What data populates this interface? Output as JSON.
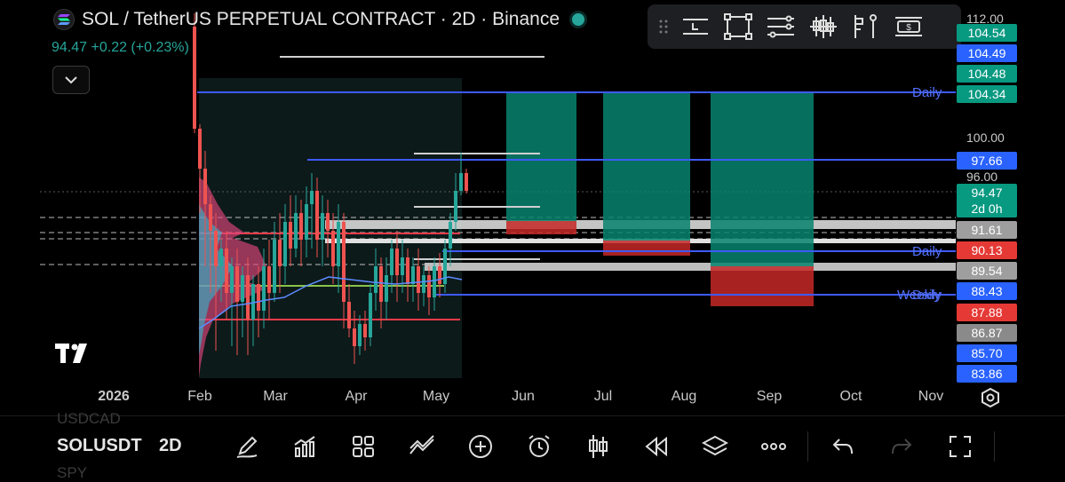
{
  "header": {
    "title": "SOL / TetherUS PERPETUAL CONTRACT · 2D · Binance",
    "last_price": "94.47",
    "change": "+0.22 (+0.23%)",
    "live_color": "#26a69a"
  },
  "price_scale": {
    "labels": [
      "112.00",
      "100.00",
      "96.00"
    ]
  },
  "price_tags": [
    {
      "value": "104.54",
      "color": "#089981"
    },
    {
      "value": "104.49",
      "color": "#2962ff"
    },
    {
      "value": "104.48",
      "color": "#089981"
    },
    {
      "value": "104.34",
      "color": "#089981"
    },
    {
      "value": "97.66",
      "color": "#2962ff"
    },
    {
      "value": "94.47",
      "color": "#089981"
    },
    {
      "value": "2d 0h",
      "color": "#089981"
    },
    {
      "value": "91.61",
      "color": "#9e9e9e"
    },
    {
      "value": "90.13",
      "color": "#e53935"
    },
    {
      "value": "89.54",
      "color": "#9e9e9e"
    },
    {
      "value": "88.43",
      "color": "#2962ff"
    },
    {
      "value": "87.88",
      "color": "#e53935"
    },
    {
      "value": "86.87",
      "color": "#8a8a8a"
    },
    {
      "value": "85.70",
      "color": "#2962ff"
    },
    {
      "value": "83.86",
      "color": "#2962ff"
    }
  ],
  "time_axis": [
    "2026",
    "Feb",
    "Mar",
    "Apr",
    "May",
    "Jun",
    "Jul",
    "Aug",
    "Sep",
    "Oct",
    "Nov"
  ],
  "line_labels": {
    "daily_top": "Daily",
    "daily_mid": "Daily",
    "weekly": "Weekly",
    "daily_low": "Daily"
  },
  "bottom_bar": {
    "prev_symbol": "USDCAD",
    "symbol": "SOLUSDT",
    "interval": "2D",
    "next_symbol": "SPY"
  },
  "icons": {
    "toolbar": [
      "drag-handle-icon",
      "horizontal-line-icon",
      "rectangle-icon",
      "parallel-channel-icon",
      "candles-icon",
      "long-short-icon",
      "price-label-icon",
      "settings-lines-icon"
    ],
    "bottom": [
      "pencil-icon",
      "indicators-icon",
      "templates-icon",
      "compare-icon",
      "add-icon",
      "alert-clock-icon",
      "chart-type-icon",
      "replay-icon",
      "layers-icon",
      "more-icon",
      "undo-icon",
      "redo-icon",
      "fullscreen-icon"
    ]
  }
}
